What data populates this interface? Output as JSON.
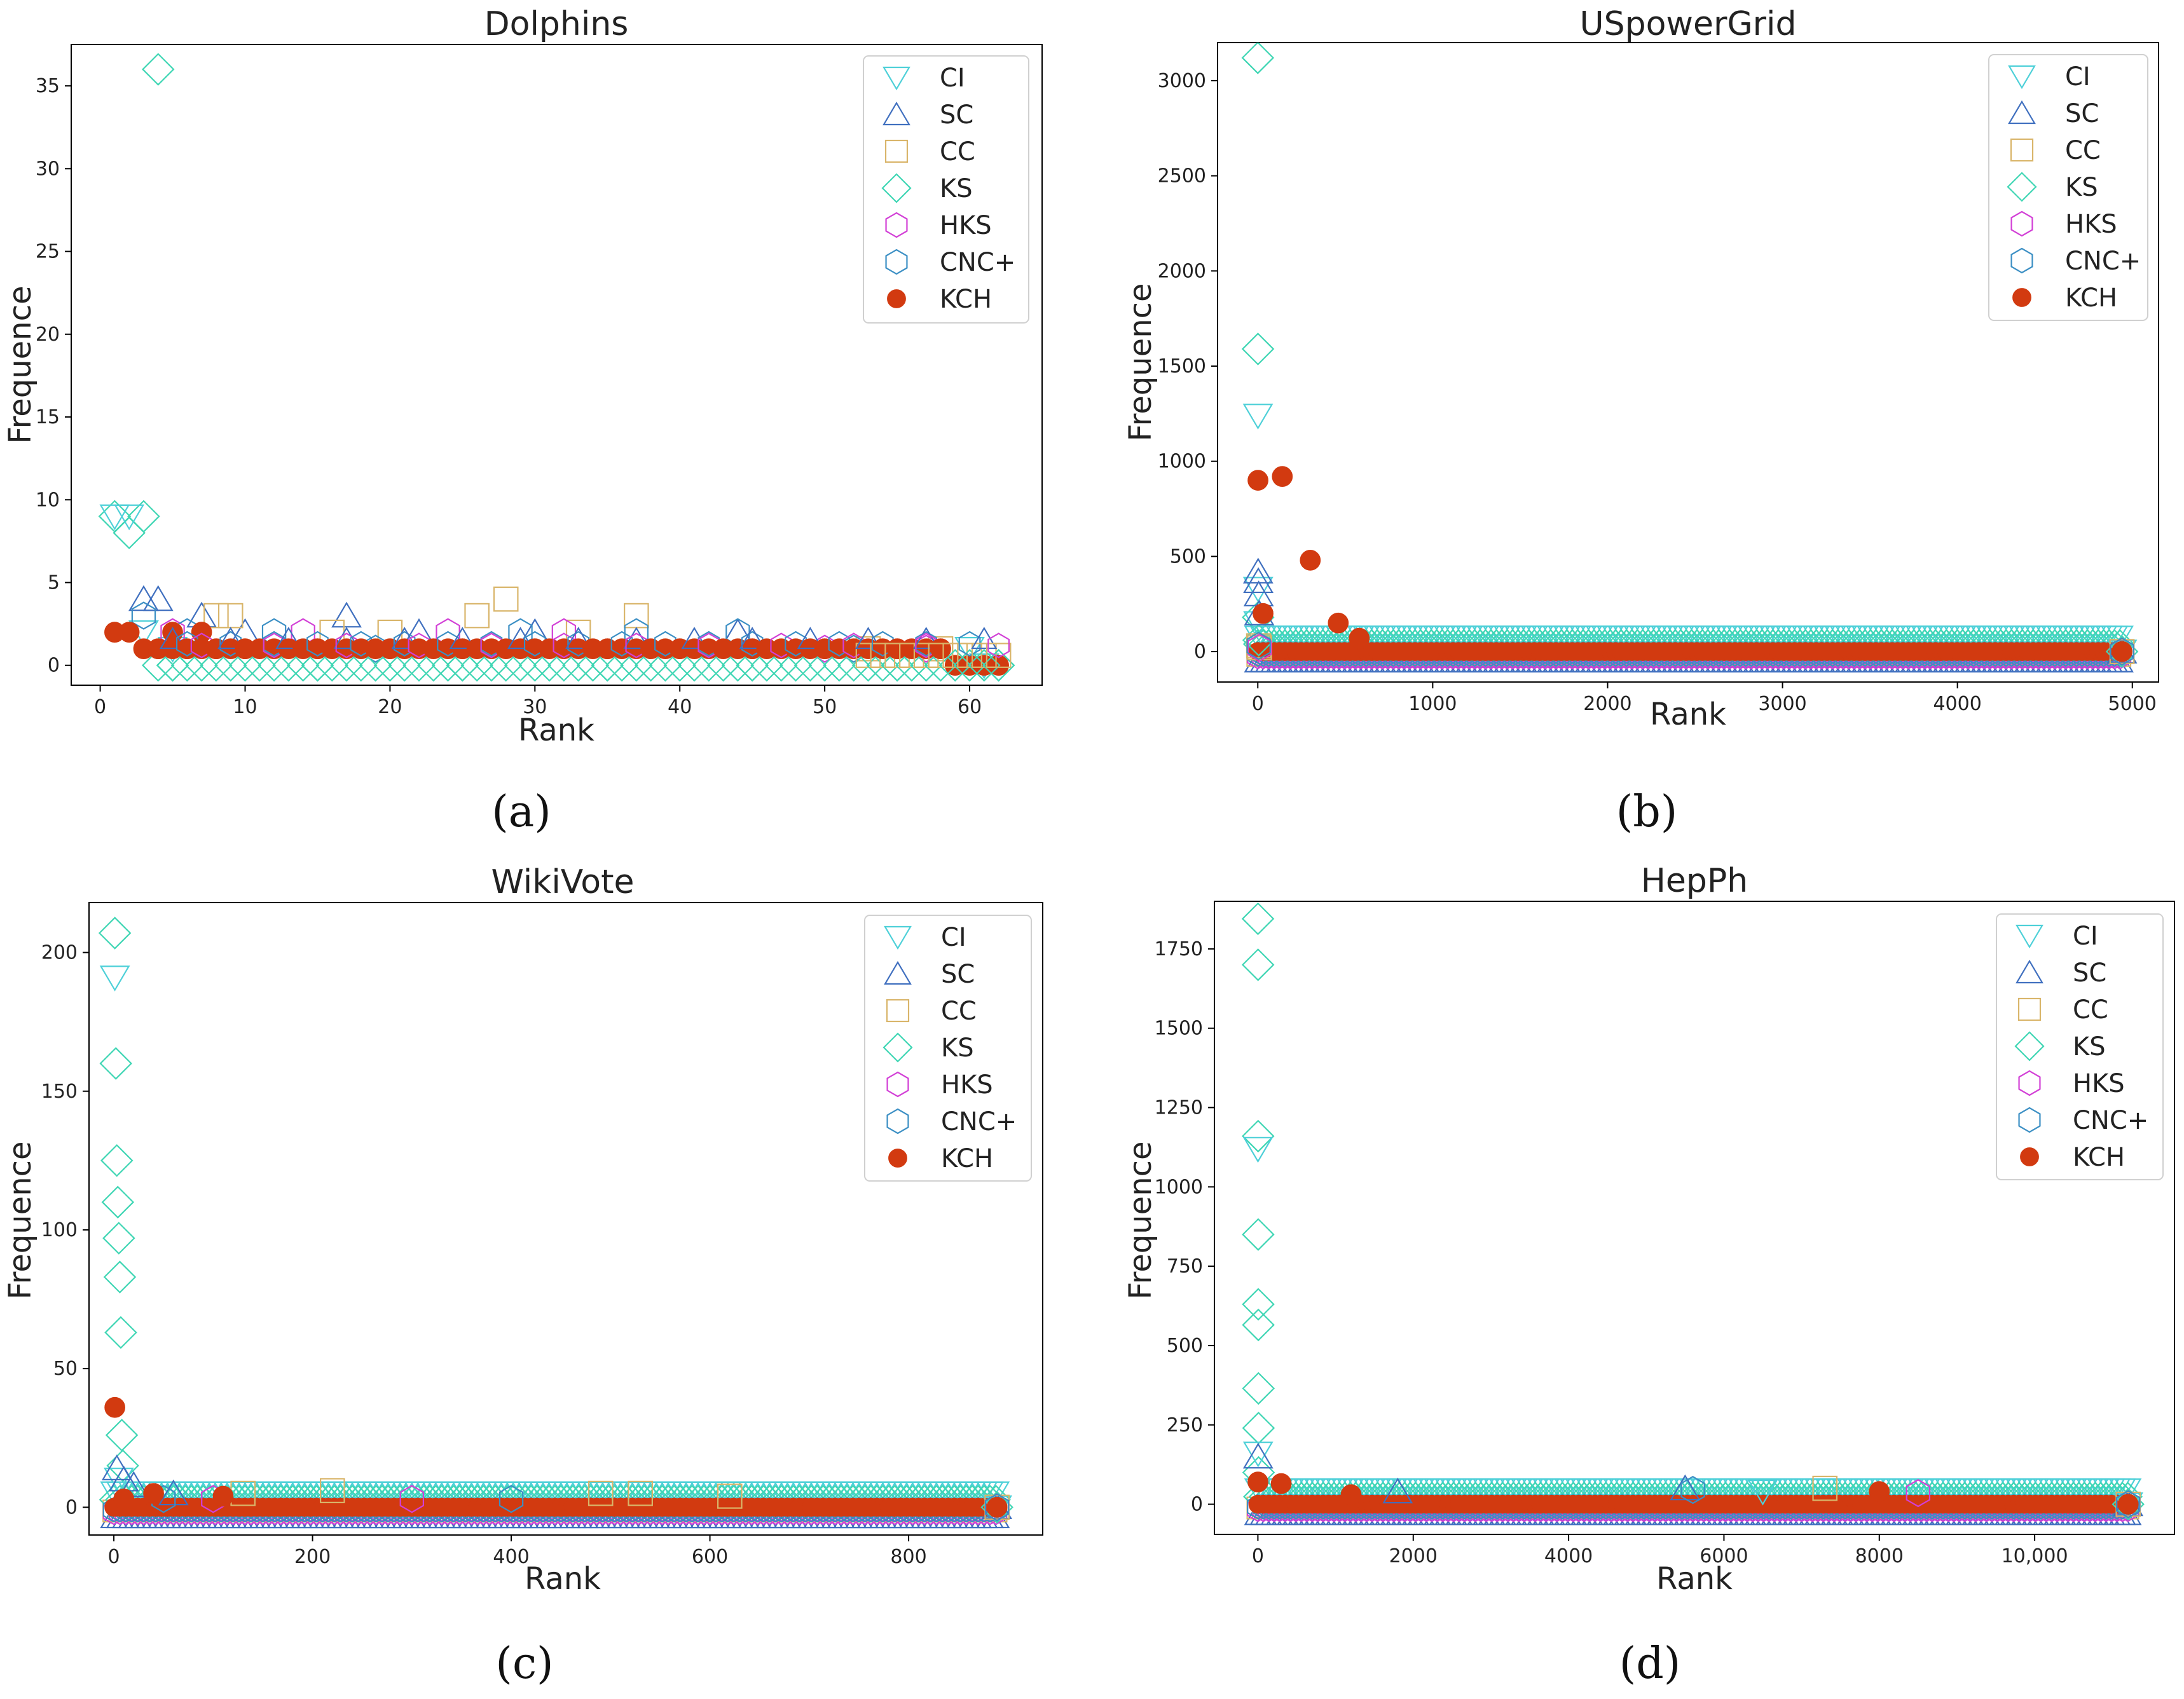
{
  "colors": {
    "CI": "#4dd0d8",
    "SC": "#3f6fbf",
    "CC": "#d9b56a",
    "KS": "#3fd6b4",
    "HKS": "#d23fd6",
    "CNC+": "#3b8fc4",
    "KCH": "#d23a10"
  },
  "legend_order": [
    "CI",
    "SC",
    "CC",
    "KS",
    "HKS",
    "CNC+",
    "KCH"
  ],
  "chart_data": [
    {
      "id": "a",
      "type": "scatter",
      "title": "Dolphins",
      "xlabel": "Rank",
      "ylabel": "Frequence",
      "caption": "(a)",
      "xlim": [
        -2,
        65
      ],
      "ylim": [
        -1.2,
        37.5
      ],
      "xticks": [
        0,
        10,
        20,
        30,
        40,
        50,
        60
      ],
      "xtick_labels": [
        "0",
        "10",
        "20",
        "30",
        "40",
        "50",
        "60"
      ],
      "yticks": [
        0,
        5,
        10,
        15,
        20,
        25,
        30,
        35
      ],
      "ytick_labels": [
        "0",
        "5",
        "10",
        "15",
        "20",
        "25",
        "30",
        "35"
      ],
      "max_rank": 62,
      "legend_labels": [
        "CI",
        "SC",
        "CC",
        "KS",
        "HKS",
        "CNC+",
        "KCH"
      ],
      "series": [
        {
          "name": "KS",
          "points": [
            [
              1,
              9
            ],
            [
              2,
              8
            ],
            [
              3,
              9
            ],
            [
              4,
              36
            ],
            [
              5,
              0
            ],
            [
              15,
              0
            ],
            [
              25,
              0
            ],
            [
              35,
              0
            ],
            [
              45,
              0
            ],
            [
              55,
              0
            ],
            [
              62,
              0
            ]
          ]
        },
        {
          "name": "CI",
          "points": [
            [
              1,
              9
            ],
            [
              2,
              9
            ],
            [
              3,
              2
            ],
            [
              5,
              1
            ],
            [
              60,
              1
            ],
            [
              61,
              0
            ]
          ]
        },
        {
          "name": "SC",
          "points": [
            [
              3,
              4
            ],
            [
              4,
              4
            ],
            [
              7,
              3
            ],
            [
              10,
              2
            ],
            [
              17,
              3
            ],
            [
              22,
              2
            ],
            [
              30,
              2
            ],
            [
              44,
              2
            ]
          ]
        },
        {
          "name": "CC",
          "points": [
            [
              8,
              3
            ],
            [
              9,
              3
            ],
            [
              16,
              2
            ],
            [
              20,
              2
            ],
            [
              26,
              3
            ],
            [
              28,
              4
            ],
            [
              33,
              2
            ],
            [
              37,
              3
            ],
            [
              53,
              1
            ],
            [
              58,
              1
            ]
          ]
        },
        {
          "name": "HKS",
          "points": [
            [
              5,
              2
            ],
            [
              14,
              2
            ],
            [
              24,
              2
            ],
            [
              32,
              2
            ],
            [
              50,
              1
            ],
            [
              57,
              1
            ]
          ]
        },
        {
          "name": "CNC+",
          "points": [
            [
              3,
              3
            ],
            [
              6,
              2
            ],
            [
              12,
              2
            ],
            [
              19,
              1
            ],
            [
              29,
              2
            ],
            [
              37,
              2
            ],
            [
              44,
              2
            ],
            [
              52,
              1
            ]
          ]
        },
        {
          "name": "KCH",
          "points": [
            [
              1,
              2
            ],
            [
              2,
              2
            ],
            [
              3,
              1
            ],
            [
              4,
              1
            ],
            [
              5,
              2
            ],
            [
              6,
              1
            ],
            [
              7,
              2
            ],
            [
              8,
              1
            ],
            [
              10,
              1
            ],
            [
              15,
              1
            ],
            [
              20,
              1
            ],
            [
              25,
              1
            ],
            [
              30,
              1
            ],
            [
              35,
              1
            ],
            [
              40,
              1
            ],
            [
              45,
              1
            ],
            [
              50,
              1
            ],
            [
              55,
              1
            ],
            [
              58,
              1
            ],
            [
              59,
              0
            ],
            [
              60,
              0
            ],
            [
              61,
              0
            ],
            [
              62,
              0
            ]
          ]
        }
      ]
    },
    {
      "id": "b",
      "type": "scatter",
      "title": "USpowerGrid",
      "xlabel": "Rank",
      "ylabel": "Frequence",
      "caption": "(b)",
      "xlim": [
        -230,
        5150
      ],
      "ylim": [
        -160,
        3200
      ],
      "xticks": [
        0,
        1000,
        2000,
        3000,
        4000,
        5000
      ],
      "xtick_labels": [
        "0",
        "1000",
        "2000",
        "3000",
        "4000",
        "5000"
      ],
      "yticks": [
        0,
        500,
        1000,
        1500,
        2000,
        2500,
        3000
      ],
      "ytick_labels": [
        "0",
        "500",
        "1000",
        "1500",
        "2000",
        "2500",
        "3000"
      ],
      "max_rank": 4941,
      "legend_labels": [
        "CI",
        "SC",
        "CC",
        "KS",
        "HKS",
        "CNC+",
        "KCH"
      ],
      "series": [
        {
          "name": "KS",
          "points": [
            [
              0,
              3120
            ],
            [
              1,
              1590
            ],
            [
              2,
              180
            ],
            [
              5,
              60
            ],
            [
              4941,
              0
            ]
          ]
        },
        {
          "name": "CI",
          "points": [
            [
              1,
              1240
            ],
            [
              2,
              330
            ],
            [
              3,
              150
            ],
            [
              4941,
              0
            ]
          ]
        },
        {
          "name": "SC",
          "points": [
            [
              2,
              420
            ],
            [
              3,
              370
            ],
            [
              5,
              300
            ],
            [
              8,
              200
            ],
            [
              4941,
              0
            ]
          ]
        },
        {
          "name": "CC",
          "points": [
            [
              5,
              30
            ],
            [
              10,
              20
            ],
            [
              4941,
              0
            ]
          ]
        },
        {
          "name": "HKS",
          "points": [
            [
              10,
              20
            ],
            [
              4941,
              0
            ]
          ]
        },
        {
          "name": "CNC+",
          "points": [
            [
              5,
              30
            ],
            [
              4941,
              0
            ]
          ]
        },
        {
          "name": "KCH",
          "points": [
            [
              1,
              900
            ],
            [
              140,
              920
            ],
            [
              300,
              480
            ],
            [
              460,
              150
            ],
            [
              580,
              70
            ],
            [
              30,
              200
            ],
            [
              4941,
              0
            ]
          ]
        }
      ]
    },
    {
      "id": "c",
      "type": "scatter",
      "title": "WikiVote",
      "xlabel": "Rank",
      "ylabel": "Frequence",
      "caption": "(c)",
      "xlim": [
        -25,
        935
      ],
      "ylim": [
        -10,
        218
      ],
      "xticks": [
        0,
        200,
        400,
        600,
        800
      ],
      "xtick_labels": [
        "0",
        "200",
        "400",
        "600",
        "800"
      ],
      "yticks": [
        0,
        50,
        100,
        150,
        200
      ],
      "ytick_labels": [
        "0",
        "50",
        "100",
        "150",
        "200"
      ],
      "max_rank": 889,
      "legend_labels": [
        "CI",
        "SC",
        "CC",
        "KS",
        "HKS",
        "CNC+",
        "KCH"
      ],
      "series": [
        {
          "name": "KS",
          "points": [
            [
              1,
              207
            ],
            [
              2,
              160
            ],
            [
              3,
              125
            ],
            [
              4,
              110
            ],
            [
              5,
              97
            ],
            [
              6,
              83
            ],
            [
              7,
              63
            ],
            [
              8,
              26
            ],
            [
              9,
              15
            ],
            [
              889,
              0
            ]
          ]
        },
        {
          "name": "CI",
          "points": [
            [
              1,
              191
            ],
            [
              5,
              10
            ],
            [
              889,
              0
            ]
          ]
        },
        {
          "name": "SC",
          "points": [
            [
              3,
              14
            ],
            [
              10,
              10
            ],
            [
              20,
              8
            ],
            [
              60,
              5
            ],
            [
              889,
              0
            ]
          ]
        },
        {
          "name": "CC",
          "points": [
            [
              130,
              5
            ],
            [
              220,
              6
            ],
            [
              490,
              5
            ],
            [
              530,
              5
            ],
            [
              620,
              4
            ],
            [
              889,
              0
            ]
          ]
        },
        {
          "name": "HKS",
          "points": [
            [
              100,
              3
            ],
            [
              300,
              3
            ],
            [
              889,
              0
            ]
          ]
        },
        {
          "name": "CNC+",
          "points": [
            [
              50,
              3
            ],
            [
              400,
              3
            ],
            [
              889,
              0
            ]
          ]
        },
        {
          "name": "KCH",
          "points": [
            [
              1,
              36
            ],
            [
              10,
              3
            ],
            [
              40,
              5
            ],
            [
              110,
              4
            ],
            [
              889,
              0
            ]
          ]
        }
      ]
    },
    {
      "id": "d",
      "type": "scatter",
      "title": "HepPh",
      "xlabel": "Rank",
      "ylabel": "Frequence",
      "caption": "(d)",
      "xlim": [
        -560,
        11800
      ],
      "ylim": [
        -95,
        1900
      ],
      "xticks": [
        0,
        2000,
        4000,
        6000,
        8000,
        10000
      ],
      "xtick_labels": [
        "0",
        "2000",
        "4000",
        "6000",
        "8000",
        "10,000"
      ],
      "yticks": [
        0,
        250,
        500,
        750,
        1000,
        1250,
        1500,
        1750
      ],
      "ytick_labels": [
        "0",
        "250",
        "500",
        "750",
        "1000",
        "1250",
        "1500",
        "1750"
      ],
      "max_rank": 11204,
      "legend_labels": [
        "CI",
        "SC",
        "CC",
        "KS",
        "HKS",
        "CNC+",
        "KCH"
      ],
      "series": [
        {
          "name": "KS",
          "points": [
            [
              1,
              1845
            ],
            [
              2,
              1700
            ],
            [
              3,
              1160
            ],
            [
              4,
              850
            ],
            [
              5,
              630
            ],
            [
              6,
              565
            ],
            [
              7,
              365
            ],
            [
              8,
              240
            ],
            [
              9,
              100
            ],
            [
              11204,
              0
            ]
          ]
        },
        {
          "name": "CI",
          "points": [
            [
              1,
              1120
            ],
            [
              3,
              160
            ],
            [
              6500,
              40
            ],
            [
              11204,
              0
            ]
          ]
        },
        {
          "name": "SC",
          "points": [
            [
              3,
              150
            ],
            [
              1800,
              40
            ],
            [
              5500,
              50
            ],
            [
              11204,
              0
            ]
          ]
        },
        {
          "name": "CC",
          "points": [
            [
              7300,
              50
            ],
            [
              11204,
              0
            ]
          ]
        },
        {
          "name": "HKS",
          "points": [
            [
              8500,
              35
            ],
            [
              11204,
              0
            ]
          ]
        },
        {
          "name": "CNC+",
          "points": [
            [
              5600,
              45
            ],
            [
              11204,
              0
            ]
          ]
        },
        {
          "name": "KCH",
          "points": [
            [
              1,
              70
            ],
            [
              300,
              65
            ],
            [
              1200,
              30
            ],
            [
              8000,
              40
            ],
            [
              11204,
              0
            ]
          ]
        }
      ]
    }
  ]
}
